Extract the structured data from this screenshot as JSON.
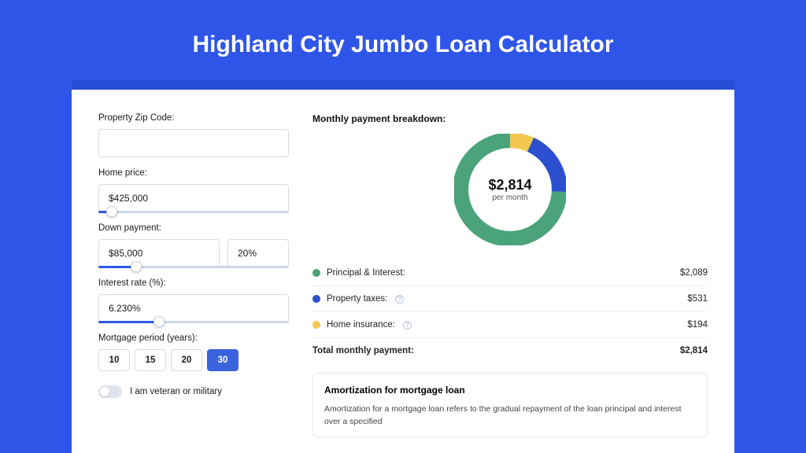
{
  "page": {
    "title": "Highland City Jumbo Loan Calculator",
    "bg_color": "#2f55e8",
    "header_bg": "#264dd6",
    "card_bg": "#ffffff"
  },
  "form": {
    "zip": {
      "label": "Property Zip Code:",
      "value": ""
    },
    "home_price": {
      "label": "Home price:",
      "value": "$425,000",
      "slider_fill_pct": 7,
      "thumb_pct": 7
    },
    "down_payment": {
      "label": "Down payment:",
      "value": "$85,000",
      "pct": "20%",
      "slider_fill_pct": 20,
      "thumb_pct": 20
    },
    "interest": {
      "label": "Interest rate (%):",
      "value": "6.230%",
      "slider_fill_pct": 32,
      "thumb_pct": 32
    },
    "period": {
      "label": "Mortgage period (years):",
      "options": [
        "10",
        "15",
        "20",
        "30"
      ],
      "selected": "30"
    },
    "veteran": {
      "label": "I am veteran or military"
    }
  },
  "breakdown": {
    "title": "Monthly payment breakdown:",
    "donut": {
      "amount": "$2,814",
      "sub": "per month",
      "segments": [
        {
          "label": "Principal & Interest",
          "color": "#4aa37a",
          "pct": 74.3
        },
        {
          "label": "Property taxes",
          "color": "#2b4fcf",
          "pct": 18.9
        },
        {
          "label": "Home insurance",
          "color": "#f2c850",
          "pct": 6.8
        }
      ]
    },
    "items": [
      {
        "dot": "#4aa37a",
        "label": "Principal & Interest:",
        "value": "$2,089",
        "info": false
      },
      {
        "dot": "#2b4fcf",
        "label": "Property taxes:",
        "value": "$531",
        "info": true
      },
      {
        "dot": "#f2c850",
        "label": "Home insurance:",
        "value": "$194",
        "info": true
      }
    ],
    "total": {
      "label": "Total monthly payment:",
      "value": "$2,814"
    }
  },
  "amortization": {
    "title": "Amortization for mortgage loan",
    "text": "Amortization for a mortgage loan refers to the gradual repayment of the loan principal and interest over a specified"
  }
}
